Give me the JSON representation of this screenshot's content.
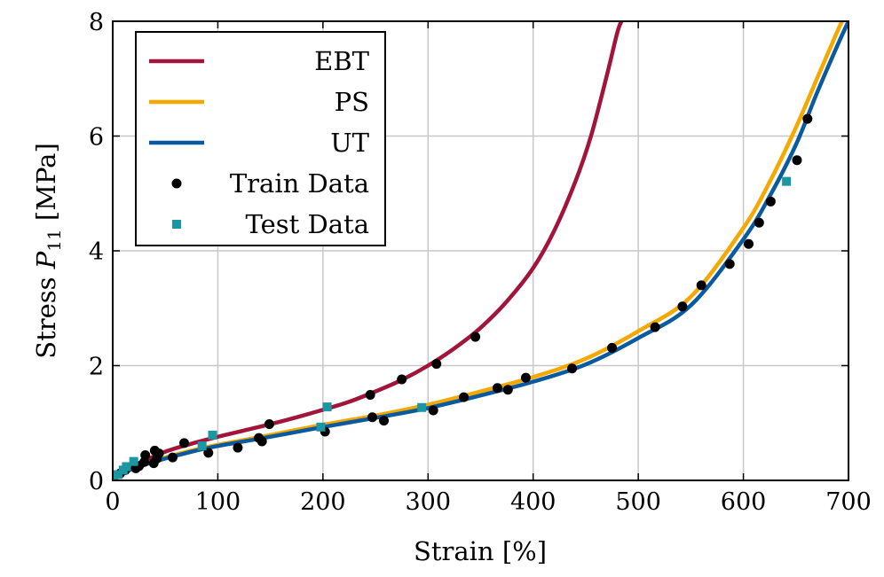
{
  "chart_data": {
    "type": "line",
    "xlabel": "Strain [%]",
    "ylabel_prefix": "Stress ",
    "ylabel_symbol": "P",
    "ylabel_subscript": "11",
    "ylabel_suffix": " [MPa]",
    "xlim": [
      0,
      700
    ],
    "ylim": [
      0,
      8
    ],
    "xticks": [
      0,
      100,
      200,
      300,
      400,
      500,
      600,
      700
    ],
    "yticks": [
      0,
      2,
      4,
      6,
      8
    ],
    "grid": true,
    "legend_position": "top-left",
    "series": [
      {
        "name": "EBT",
        "kind": "line",
        "color": "#a2143a",
        "x": [
          0,
          10,
          25,
          50,
          75,
          100,
          125,
          150,
          175,
          200,
          225,
          250,
          275,
          300,
          325,
          350,
          375,
          400,
          420,
          440,
          455,
          470,
          480,
          484
        ],
        "y": [
          0,
          0.17,
          0.3,
          0.5,
          0.64,
          0.76,
          0.87,
          0.98,
          1.1,
          1.23,
          1.37,
          1.55,
          1.75,
          2.0,
          2.3,
          2.66,
          3.12,
          3.7,
          4.35,
          5.2,
          6.0,
          7.05,
          7.8,
          8.0
        ]
      },
      {
        "name": "PS",
        "kind": "line",
        "color": "#f5a800",
        "x": [
          0,
          10,
          25,
          50,
          75,
          100,
          150,
          200,
          250,
          300,
          350,
          400,
          450,
          500,
          550,
          600,
          625,
          650,
          670,
          690,
          694
        ],
        "y": [
          0,
          0.14,
          0.25,
          0.4,
          0.52,
          0.62,
          0.79,
          0.97,
          1.13,
          1.32,
          1.55,
          1.8,
          2.12,
          2.6,
          3.2,
          4.4,
          5.2,
          6.15,
          7.0,
          7.85,
          8.0
        ]
      },
      {
        "name": "UT",
        "kind": "line",
        "color": "#0a5aa0",
        "x": [
          0,
          10,
          25,
          50,
          75,
          100,
          150,
          200,
          250,
          300,
          350,
          400,
          450,
          500,
          550,
          600,
          625,
          650,
          670,
          690,
          700
        ],
        "y": [
          0,
          0.13,
          0.24,
          0.38,
          0.5,
          0.6,
          0.76,
          0.93,
          1.09,
          1.26,
          1.48,
          1.72,
          2.02,
          2.48,
          3.05,
          4.2,
          4.95,
          5.85,
          6.75,
          7.6,
          8.0
        ]
      },
      {
        "name": "Train Data",
        "kind": "marker",
        "marker": "circle",
        "color": "#000000",
        "x": [
          7,
          12,
          22,
          25,
          30,
          31,
          39,
          40,
          42,
          44,
          57,
          68,
          91,
          119,
          139,
          142,
          149,
          202,
          245,
          247,
          258,
          275,
          305,
          308,
          334,
          345,
          366,
          376,
          393,
          437,
          475,
          516,
          542,
          560,
          587,
          605,
          615,
          626,
          651,
          661
        ],
        "y": [
          0.12,
          0.18,
          0.21,
          0.25,
          0.32,
          0.44,
          0.3,
          0.52,
          0.38,
          0.47,
          0.4,
          0.65,
          0.48,
          0.57,
          0.74,
          0.68,
          0.98,
          0.85,
          1.49,
          1.1,
          1.04,
          1.76,
          1.22,
          2.03,
          1.45,
          2.5,
          1.61,
          1.58,
          1.79,
          1.95,
          2.31,
          2.67,
          3.03,
          3.4,
          3.77,
          4.12,
          4.49,
          4.86,
          5.58,
          6.3
        ]
      },
      {
        "name": "Test Data",
        "kind": "marker",
        "marker": "square",
        "color": "#1a97a3",
        "x": [
          1,
          5,
          10,
          13,
          20,
          85,
          95,
          198,
          204,
          294,
          641
        ],
        "y": [
          0.02,
          0.1,
          0.18,
          0.24,
          0.33,
          0.6,
          0.79,
          0.93,
          1.28,
          1.27,
          5.21
        ]
      }
    ]
  }
}
